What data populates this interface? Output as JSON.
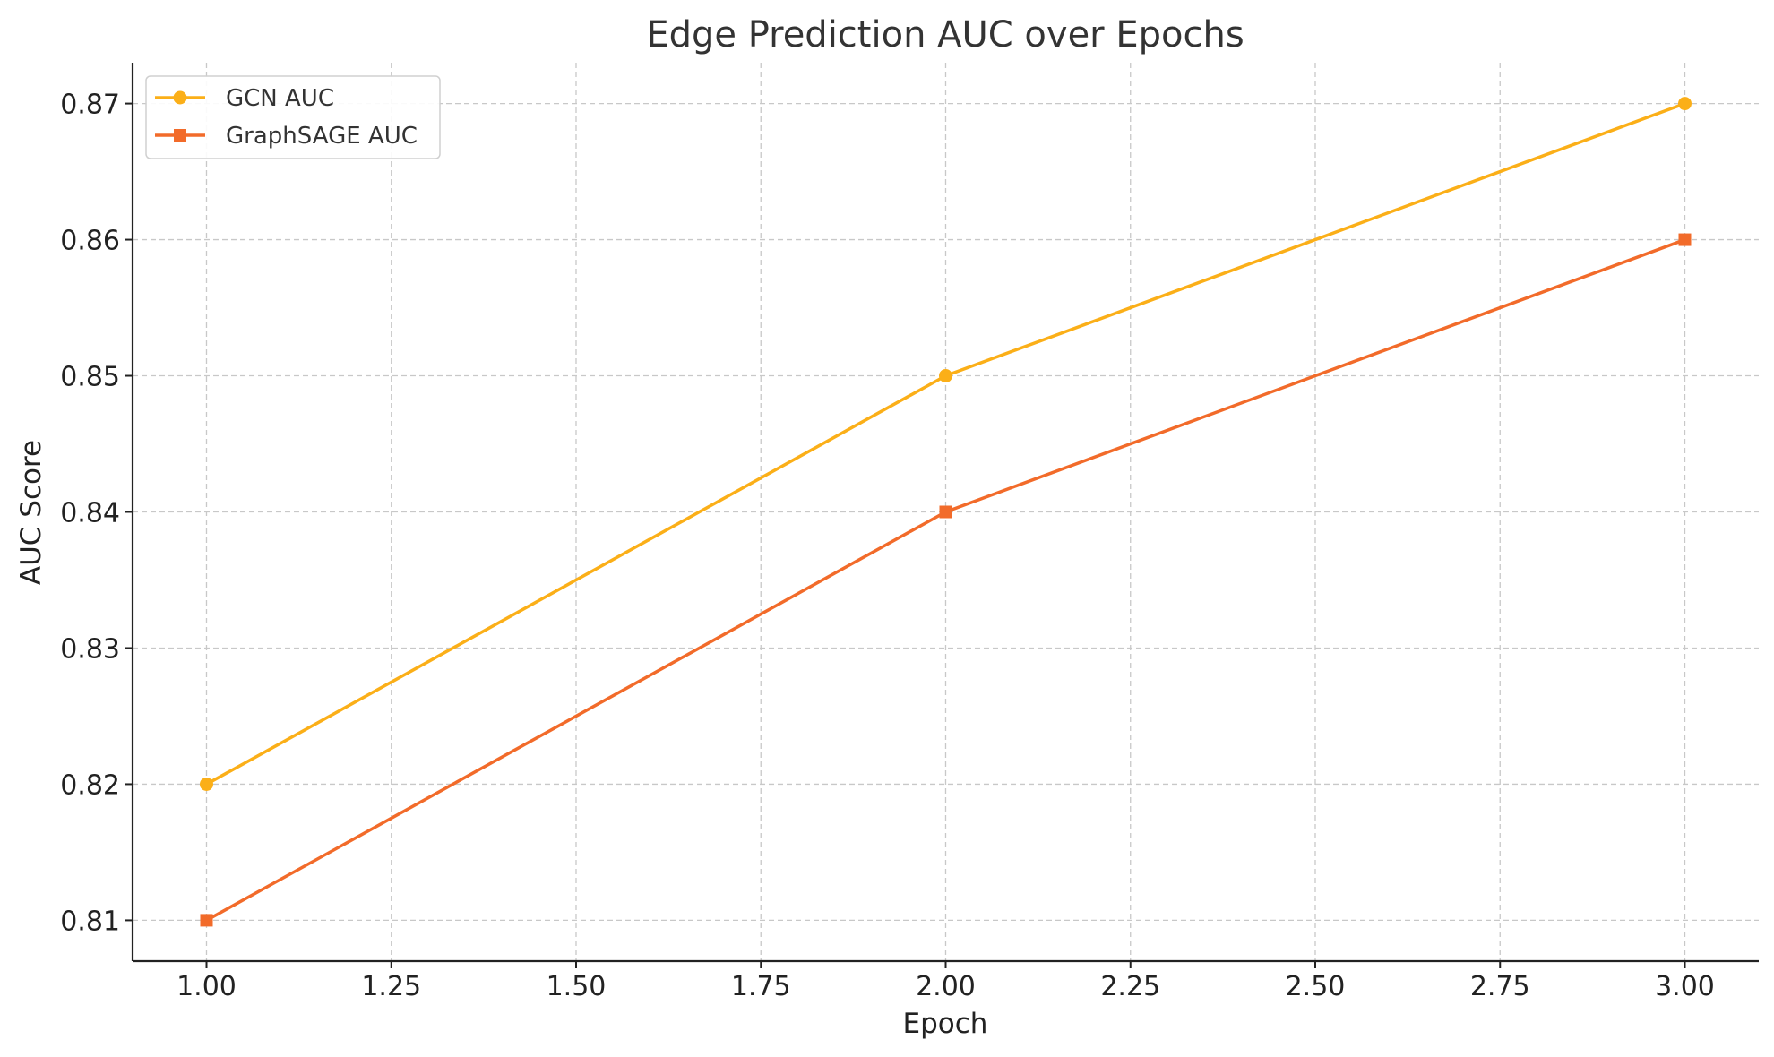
{
  "chart_data": {
    "type": "line",
    "title": "Edge Prediction AUC over Epochs",
    "xlabel": "Epoch",
    "ylabel": "AUC Score",
    "x": [
      1,
      2,
      3
    ],
    "xlim": [
      0.9,
      3.1
    ],
    "ylim": [
      0.807,
      0.873
    ],
    "xticks": [
      1.0,
      1.25,
      1.5,
      1.75,
      2.0,
      2.25,
      2.5,
      2.75,
      3.0
    ],
    "xtick_labels": [
      "1.00",
      "1.25",
      "1.50",
      "1.75",
      "2.00",
      "2.25",
      "2.50",
      "2.75",
      "3.00"
    ],
    "yticks": [
      0.81,
      0.82,
      0.83,
      0.84,
      0.85,
      0.86,
      0.87
    ],
    "ytick_labels": [
      "0.81",
      "0.82",
      "0.83",
      "0.84",
      "0.85",
      "0.86",
      "0.87"
    ],
    "grid": true,
    "legend_position": "top-left",
    "series": [
      {
        "name": "GCN AUC",
        "values": [
          0.82,
          0.85,
          0.87
        ],
        "color": "#FBAF18",
        "marker": "circle"
      },
      {
        "name": "GraphSAGE AUC",
        "values": [
          0.81,
          0.84,
          0.86
        ],
        "color": "#F26B2A",
        "marker": "square"
      }
    ]
  }
}
